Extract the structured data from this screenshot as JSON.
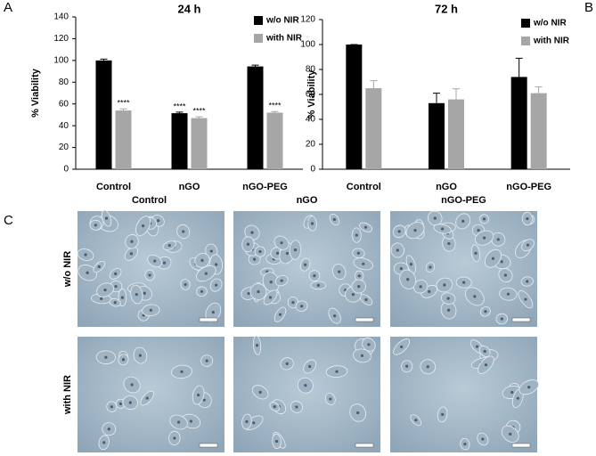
{
  "chart_data": [
    {
      "type": "bar",
      "title": "24 h",
      "ylabel": "% Viability",
      "categories": [
        "Control",
        "nGO",
        "nGO-PEG"
      ],
      "series": [
        {
          "name": "w/o NIR",
          "color": "#000000",
          "values": [
            100,
            51.5,
            94.5
          ],
          "errors": [
            1.2,
            1,
            1.2
          ],
          "significance": [
            null,
            "****",
            null
          ]
        },
        {
          "name": "with NIR",
          "color": "#a6a6a6",
          "values": [
            54,
            47,
            52
          ],
          "errors": [
            1.5,
            1.2,
            1
          ],
          "significance": [
            "****",
            "****",
            "****"
          ]
        }
      ],
      "ylim": [
        0,
        140
      ],
      "yticks": [
        0,
        20,
        40,
        60,
        80,
        100,
        120,
        140
      ],
      "legend": "top-right"
    },
    {
      "type": "bar",
      "title": "72 h",
      "ylabel": "% Viability",
      "categories": [
        "Control",
        "nGO",
        "nGO-PEG"
      ],
      "series": [
        {
          "name": "w/o NIR",
          "color": "#000000",
          "values": [
            100,
            53,
            74
          ],
          "errors": [
            0,
            8,
            15
          ]
        },
        {
          "name": "with NIR",
          "color": "#a6a6a6",
          "values": [
            65,
            56,
            61
          ],
          "errors": [
            6,
            8.5,
            5
          ]
        }
      ],
      "ylim": [
        0,
        120
      ],
      "yticks": [
        0,
        20,
        40,
        60,
        80,
        100,
        120
      ],
      "legend": "top-right"
    }
  ],
  "panels": {
    "a": "A",
    "b": "B",
    "c": "C"
  },
  "images": {
    "columns": [
      "Control",
      "nGO",
      "nGO-PEG"
    ],
    "rows": [
      "w/o NIR",
      "with NIR"
    ]
  }
}
